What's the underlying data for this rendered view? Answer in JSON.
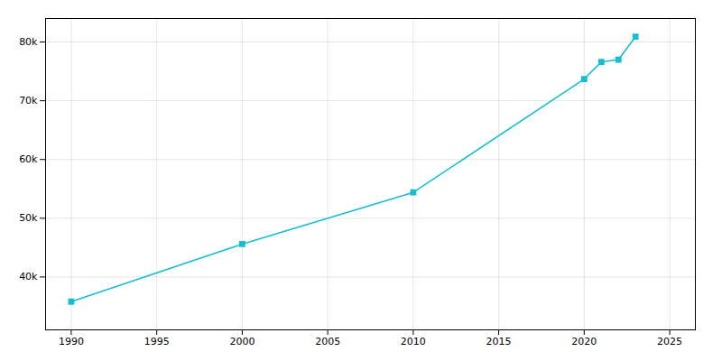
{
  "chart_data": {
    "type": "line",
    "x": [
      1990,
      2000,
      2010,
      2020,
      2021,
      2022,
      2023
    ],
    "values": [
      35800,
      45600,
      54400,
      73700,
      76600,
      77000,
      80900
    ],
    "color": "#17BECF",
    "marker": "square",
    "xlim": [
      1988.5,
      2026.5
    ],
    "ylim": [
      31000,
      84000
    ],
    "xticks": [
      1990,
      1995,
      2000,
      2005,
      2010,
      2015,
      2020,
      2025
    ],
    "yticks": [
      {
        "value": 40000,
        "label": "40k"
      },
      {
        "value": 50000,
        "label": "50k"
      },
      {
        "value": 60000,
        "label": "60k"
      },
      {
        "value": 70000,
        "label": "70k"
      },
      {
        "value": 80000,
        "label": "80k"
      }
    ],
    "grid": true
  }
}
